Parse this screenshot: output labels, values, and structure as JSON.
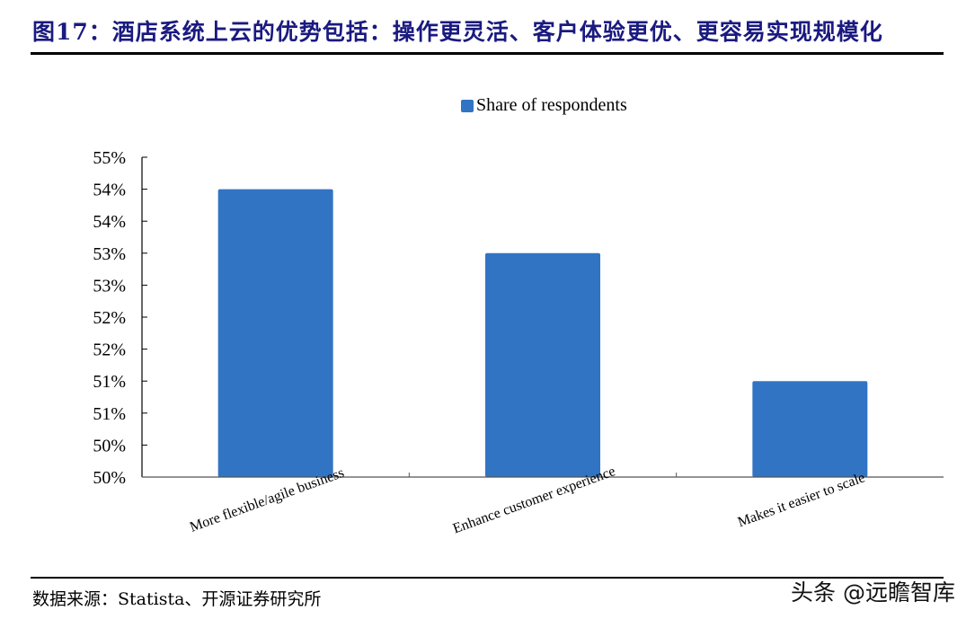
{
  "header": {
    "title": "图17：酒店系统上云的优势包括：操作更灵活、客户体验更优、更容易实现规模化"
  },
  "footer": {
    "source": "数据来源：Statista、开源证券研究所",
    "watermark": "头条 @远瞻智库"
  },
  "legend": {
    "label": "Share of respondents",
    "color": "#3174c4"
  },
  "chart_data": {
    "type": "bar",
    "title": "",
    "xlabel": "",
    "ylabel": "",
    "categories": [
      "More flexible/agile business",
      "Enhance customer experience",
      "Makes it easier to scale"
    ],
    "series": [
      {
        "name": "Share of respondents",
        "values": [
          54.5,
          53.5,
          51.5
        ],
        "color": "#3174c4"
      }
    ],
    "ylim": [
      50,
      55
    ],
    "y_ticks": [
      50,
      50.5,
      51,
      51.5,
      52,
      52.5,
      53,
      53.5,
      54,
      54.5,
      55
    ],
    "y_tick_labels": [
      "50%",
      "50%",
      "51%",
      "51%",
      "52%",
      "52%",
      "53%",
      "53%",
      "54%",
      "54%",
      "55%"
    ],
    "grid": false,
    "legend_position": "top"
  }
}
